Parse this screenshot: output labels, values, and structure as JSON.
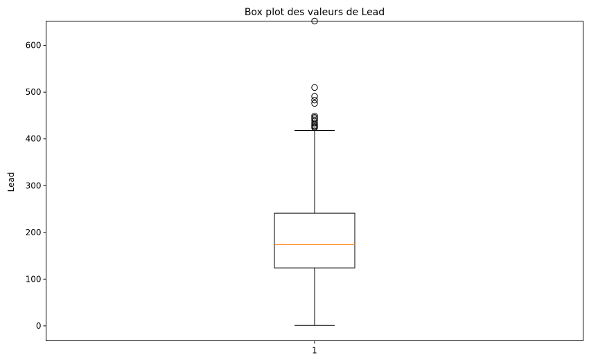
{
  "chart_data": {
    "type": "box",
    "title": "Box plot des valeurs de Lead",
    "xlabel": "",
    "ylabel": "Lead",
    "categories": [
      "1"
    ],
    "ylim": [
      -32,
      652
    ],
    "yticks": [
      0,
      100,
      200,
      300,
      400,
      500,
      600
    ],
    "grid": false,
    "boxes": [
      {
        "category": "1",
        "whisker_low": 1,
        "q1": 124,
        "median": 174,
        "q3": 241,
        "whisker_high": 418,
        "outliers": [
          424,
          426,
          428,
          431,
          434,
          440,
          443,
          446,
          449,
          476,
          483,
          491,
          510,
          652
        ]
      }
    ],
    "colors": {
      "box": "#000000",
      "median": "#ff7f0e",
      "outlier_edge": "#000000"
    }
  }
}
